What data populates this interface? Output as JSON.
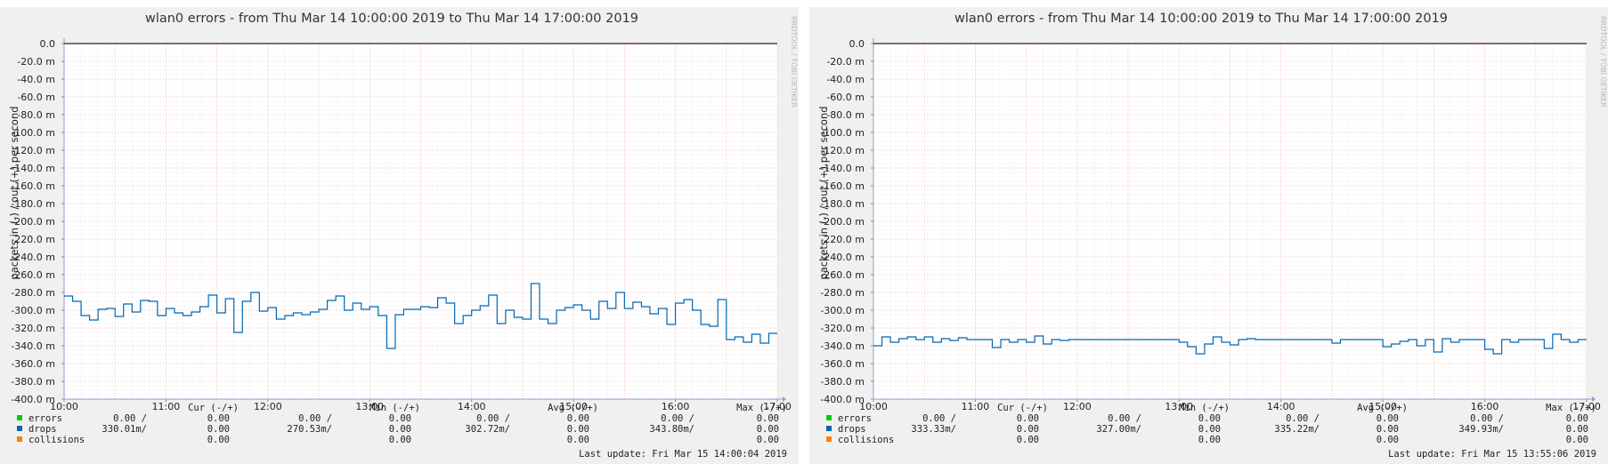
{
  "colors": {
    "errors": "#00cc00",
    "drops": "#0066b3",
    "collisions": "#ff8000",
    "grid_minor": "#dcdcdc",
    "grid_major": "#ff9a9a"
  },
  "watermark": "RRDTOOL / TOBI OETIKER",
  "legend_headers": {
    "cur": "Cur (-/+)",
    "min": "Min (-/+)",
    "avg": "Avg (-/+)",
    "max": "Max (-/+)"
  },
  "charts": [
    {
      "title": "wlan0 errors - from Thu Mar 14 10:00:00 2019 to Thu Mar 14 17:00:00 2019",
      "last_update": "Last update: Fri Mar 15 14:00:04 2019",
      "legend": [
        {
          "name": "errors",
          "cur_in": "0.00 /",
          "cur_out": "0.00",
          "min_in": "0.00 /",
          "min_out": "0.00",
          "avg_in": "0.00 /",
          "avg_out": "0.00",
          "max_in": "0.00 /",
          "max_out": "0.00"
        },
        {
          "name": "drops",
          "cur_in": "330.01m/",
          "cur_out": "0.00",
          "min_in": "270.53m/",
          "min_out": "0.00",
          "avg_in": "302.72m/",
          "avg_out": "0.00",
          "max_in": "343.80m/",
          "max_out": "0.00"
        },
        {
          "name": "collisions",
          "cur_in": "",
          "cur_out": "0.00",
          "min_in": "",
          "min_out": "0.00",
          "avg_in": "",
          "avg_out": "0.00",
          "max_in": "",
          "max_out": "0.00"
        }
      ]
    },
    {
      "title": "wlan0 errors - from Thu Mar 14 10:00:00 2019 to Thu Mar 14 17:00:00 2019",
      "last_update": "Last update: Fri Mar 15 13:55:06 2019",
      "legend": [
        {
          "name": "errors",
          "cur_in": "0.00 /",
          "cur_out": "0.00",
          "min_in": "0.00 /",
          "min_out": "0.00",
          "avg_in": "0.00 /",
          "avg_out": "0.00",
          "max_in": "0.00 /",
          "max_out": "0.00"
        },
        {
          "name": "drops",
          "cur_in": "333.33m/",
          "cur_out": "0.00",
          "min_in": "327.00m/",
          "min_out": "0.00",
          "avg_in": "335.22m/",
          "avg_out": "0.00",
          "max_in": "349.93m/",
          "max_out": "0.00"
        },
        {
          "name": "collisions",
          "cur_in": "",
          "cur_out": "0.00",
          "min_in": "",
          "min_out": "0.00",
          "avg_in": "",
          "avg_out": "0.00",
          "max_in": "",
          "max_out": "0.00"
        }
      ]
    }
  ],
  "chart_data": [
    {
      "type": "line",
      "title": "wlan0 errors - from Thu Mar 14 10:00:00 2019 to Thu Mar 14 17:00:00 2019",
      "xlabel": "",
      "ylabel": "packets in (-) / out (+) per second",
      "xlim": [
        "10:00",
        "17:00"
      ],
      "ylim": [
        -400,
        0
      ],
      "y_ticks": [
        "0.0",
        "-20.0 m",
        "-40.0 m",
        "-60.0 m",
        "-80.0 m",
        "-100.0 m",
        "-120.0 m",
        "-140.0 m",
        "-160.0 m",
        "-180.0 m",
        "-200.0 m",
        "-220.0 m",
        "-240.0 m",
        "-260.0 m",
        "-280.0 m",
        "-300.0 m",
        "-320.0 m",
        "-340.0 m",
        "-360.0 m",
        "-380.0 m",
        "-400.0 m"
      ],
      "x_ticks": [
        "10:00",
        "11:00",
        "12:00",
        "13:00",
        "14:00",
        "15:00",
        "16:00",
        "17:00"
      ],
      "grid": true,
      "series": [
        {
          "name": "drops",
          "x": [
            "10:00",
            "10:05",
            "10:10",
            "10:15",
            "10:20",
            "10:25",
            "10:30",
            "10:35",
            "10:40",
            "10:45",
            "10:50",
            "10:55",
            "11:00",
            "11:05",
            "11:10",
            "11:15",
            "11:20",
            "11:25",
            "11:30",
            "11:35",
            "11:40",
            "11:45",
            "11:50",
            "11:55",
            "12:00",
            "12:05",
            "12:10",
            "12:15",
            "12:20",
            "12:25",
            "12:30",
            "12:35",
            "12:40",
            "12:45",
            "12:50",
            "12:55",
            "13:00",
            "13:05",
            "13:10",
            "13:15",
            "13:20",
            "13:25",
            "13:30",
            "13:35",
            "13:40",
            "13:45",
            "13:50",
            "13:55",
            "14:00",
            "14:05",
            "14:10",
            "14:15",
            "14:20",
            "14:25",
            "14:30",
            "14:35",
            "14:40",
            "14:45",
            "14:50",
            "14:55",
            "15:00",
            "15:05",
            "15:10",
            "15:15",
            "15:20",
            "15:25",
            "15:30",
            "15:35",
            "15:40",
            "15:45",
            "15:50",
            "15:55",
            "16:00",
            "16:05",
            "16:10",
            "16:15",
            "16:20",
            "16:25",
            "16:30",
            "16:35",
            "16:40",
            "16:45",
            "16:50",
            "16:55"
          ],
          "values": [
            -284,
            -290,
            -306,
            -311,
            -299,
            -298,
            -307,
            -293,
            -302,
            -289,
            -290,
            -306,
            -298,
            -303,
            -306,
            -302,
            -296,
            -283,
            -303,
            -287,
            -325,
            -290,
            -280,
            -301,
            -297,
            -310,
            -306,
            -303,
            -305,
            -302,
            -299,
            -289,
            -284,
            -300,
            -292,
            -299,
            -296,
            -306,
            -343,
            -305,
            -299,
            -299,
            -296,
            -297,
            -286,
            -292,
            -315,
            -306,
            -300,
            -295,
            -283,
            -315,
            -300,
            -308,
            -310,
            -270,
            -310,
            -315,
            -300,
            -297,
            -294,
            -300,
            -310,
            -290,
            -298,
            -280,
            -298,
            -291,
            -296,
            -304,
            -298,
            -316,
            -292,
            -288,
            -300,
            -316,
            -318,
            -288,
            -333,
            -330,
            -336,
            -327,
            -337,
            -326
          ]
        }
      ]
    },
    {
      "type": "line",
      "title": "wlan0 errors - from Thu Mar 14 10:00:00 2019 to Thu Mar 14 17:00:00 2019",
      "xlabel": "",
      "ylabel": "packets in (-) / out (+) per second",
      "xlim": [
        "10:00",
        "17:00"
      ],
      "ylim": [
        -400,
        0
      ],
      "y_ticks": [
        "0.0",
        "-20.0 m",
        "-40.0 m",
        "-60.0 m",
        "-80.0 m",
        "-100.0 m",
        "-120.0 m",
        "-140.0 m",
        "-160.0 m",
        "-180.0 m",
        "-200.0 m",
        "-220.0 m",
        "-240.0 m",
        "-260.0 m",
        "-280.0 m",
        "-300.0 m",
        "-320.0 m",
        "-340.0 m",
        "-360.0 m",
        "-380.0 m",
        "-400.0 m"
      ],
      "x_ticks": [
        "10:00",
        "11:00",
        "12:00",
        "13:00",
        "14:00",
        "15:00",
        "16:00",
        "17:00"
      ],
      "grid": true,
      "series": [
        {
          "name": "drops",
          "x": [
            "10:00",
            "10:05",
            "10:10",
            "10:15",
            "10:20",
            "10:25",
            "10:30",
            "10:35",
            "10:40",
            "10:45",
            "10:50",
            "10:55",
            "11:00",
            "11:05",
            "11:10",
            "11:15",
            "11:20",
            "11:25",
            "11:30",
            "11:35",
            "11:40",
            "11:45",
            "11:50",
            "11:55",
            "12:00",
            "12:05",
            "12:10",
            "12:15",
            "12:20",
            "12:25",
            "12:30",
            "12:35",
            "12:40",
            "12:45",
            "12:50",
            "12:55",
            "13:00",
            "13:05",
            "13:10",
            "13:15",
            "13:20",
            "13:25",
            "13:30",
            "13:35",
            "13:40",
            "13:45",
            "13:50",
            "13:55",
            "14:00",
            "14:05",
            "14:10",
            "14:15",
            "14:20",
            "14:25",
            "14:30",
            "14:35",
            "14:40",
            "14:45",
            "14:50",
            "14:55",
            "15:00",
            "15:05",
            "15:10",
            "15:15",
            "15:20",
            "15:25",
            "15:30",
            "15:35",
            "15:40",
            "15:45",
            "15:50",
            "15:55",
            "16:00",
            "16:05",
            "16:10",
            "16:15",
            "16:20",
            "16:25",
            "16:30",
            "16:35",
            "16:40",
            "16:45",
            "16:50",
            "16:55"
          ],
          "values": [
            -340,
            -330,
            -336,
            -332,
            -330,
            -333,
            -330,
            -336,
            -332,
            -334,
            -331,
            -333,
            -333,
            -333,
            -342,
            -333,
            -336,
            -333,
            -336,
            -329,
            -338,
            -333,
            -334,
            -333,
            -333,
            -333,
            -333,
            -333,
            -333,
            -333,
            -333,
            -333,
            -333,
            -333,
            -333,
            -333,
            -336,
            -341,
            -349,
            -338,
            -330,
            -336,
            -339,
            -333,
            -332,
            -333,
            -333,
            -333,
            -333,
            -333,
            -333,
            -333,
            -333,
            -333,
            -337,
            -333,
            -333,
            -333,
            -333,
            -333,
            -341,
            -338,
            -335,
            -333,
            -340,
            -333,
            -347,
            -332,
            -336,
            -333,
            -333,
            -333,
            -344,
            -349,
            -333,
            -336,
            -333,
            -333,
            -333,
            -343,
            -327,
            -333,
            -336,
            -333
          ]
        }
      ]
    }
  ]
}
